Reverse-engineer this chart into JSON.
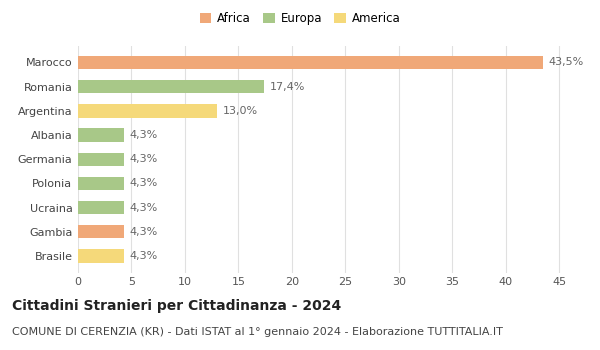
{
  "categories": [
    "Brasile",
    "Gambia",
    "Ucraina",
    "Polonia",
    "Germania",
    "Albania",
    "Argentina",
    "Romania",
    "Marocco"
  ],
  "values": [
    4.3,
    4.3,
    4.3,
    4.3,
    4.3,
    4.3,
    13.0,
    17.4,
    43.5
  ],
  "labels": [
    "4,3%",
    "4,3%",
    "4,3%",
    "4,3%",
    "4,3%",
    "4,3%",
    "13,0%",
    "17,4%",
    "43,5%"
  ],
  "colors": [
    "#f5d97a",
    "#f0a878",
    "#a8c888",
    "#a8c888",
    "#a8c888",
    "#a8c888",
    "#f5d97a",
    "#a8c888",
    "#f0a878"
  ],
  "legend_labels": [
    "Africa",
    "Europa",
    "America"
  ],
  "legend_colors": [
    "#f0a878",
    "#a8c888",
    "#f5d97a"
  ],
  "title": "Cittadini Stranieri per Cittadinanza - 2024",
  "subtitle": "COMUNE DI CERENZIA (KR) - Dati ISTAT al 1° gennaio 2024 - Elaborazione TUTTITALIA.IT",
  "xlim": [
    0,
    46
  ],
  "xticks": [
    0,
    5,
    10,
    15,
    20,
    25,
    30,
    35,
    40,
    45
  ],
  "background_color": "#ffffff",
  "grid_color": "#e0e0e0",
  "bar_height": 0.55,
  "title_fontsize": 10,
  "subtitle_fontsize": 8,
  "label_fontsize": 8,
  "tick_fontsize": 8,
  "legend_fontsize": 8.5
}
